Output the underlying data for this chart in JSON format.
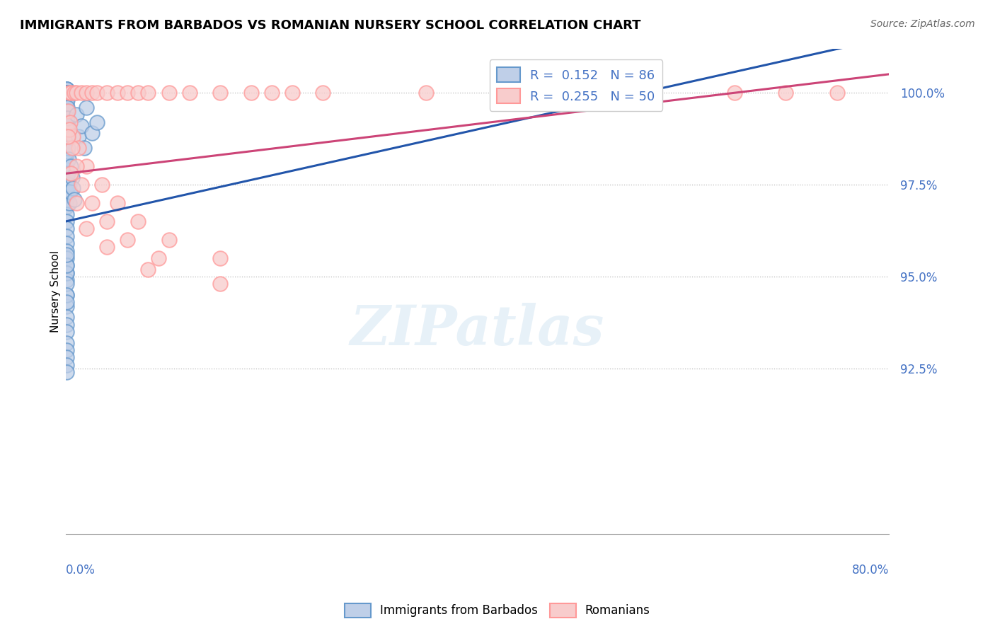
{
  "title": "IMMIGRANTS FROM BARBADOS VS ROMANIAN NURSERY SCHOOL CORRELATION CHART",
  "source": "Source: ZipAtlas.com",
  "ylabel": "Nursery School",
  "blue_R": 0.152,
  "blue_N": 86,
  "pink_R": 0.255,
  "pink_N": 50,
  "blue_color": "#6699CC",
  "pink_color": "#FF9999",
  "blue_label": "Immigrants from Barbados",
  "pink_label": "Romanians",
  "background_color": "#FFFFFF",
  "xlim": [
    0.0,
    80.0
  ],
  "ylim": [
    88.0,
    101.2
  ],
  "ytick_vals": [
    92.5,
    95.0,
    97.5,
    100.0
  ],
  "blue_scatter_x": [
    0.05,
    0.05,
    0.05,
    0.05,
    0.05,
    0.05,
    0.05,
    0.05,
    0.05,
    0.05,
    0.05,
    0.05,
    0.05,
    0.05,
    0.05,
    0.05,
    0.05,
    0.05,
    0.05,
    0.05,
    0.05,
    0.05,
    0.05,
    0.05,
    0.05,
    0.05,
    0.05,
    0.05,
    0.05,
    0.05,
    0.05,
    0.05,
    0.05,
    0.05,
    0.05,
    0.05,
    0.05,
    0.05,
    0.05,
    0.05,
    0.1,
    0.1,
    0.1,
    0.1,
    0.1,
    0.12,
    0.12,
    0.12,
    0.15,
    0.15,
    0.2,
    0.2,
    0.25,
    0.3,
    0.35,
    0.4,
    0.5,
    0.6,
    0.7,
    0.8,
    1.0,
    1.2,
    1.5,
    1.8,
    2.0,
    2.5,
    3.0,
    0.05,
    0.05,
    0.05,
    0.05,
    0.05,
    0.05,
    0.05,
    0.05,
    0.05,
    0.05,
    0.05,
    0.05,
    0.05,
    0.05,
    0.05,
    0.05
  ],
  "blue_scatter_y": [
    100.1,
    100.1,
    100.1,
    100.1,
    100.0,
    100.0,
    100.0,
    99.9,
    99.9,
    99.8,
    99.7,
    99.6,
    99.5,
    99.4,
    99.3,
    99.2,
    99.1,
    99.0,
    98.9,
    98.8,
    98.7,
    98.5,
    98.3,
    98.1,
    97.9,
    97.7,
    97.5,
    97.3,
    97.1,
    96.9,
    96.7,
    96.5,
    96.3,
    96.1,
    95.9,
    95.7,
    95.5,
    95.3,
    95.1,
    94.9,
    100.0,
    99.8,
    99.5,
    99.2,
    98.8,
    99.6,
    99.0,
    98.4,
    100.0,
    99.3,
    98.5,
    97.8,
    98.2,
    97.5,
    97.0,
    97.3,
    98.0,
    97.7,
    97.4,
    97.1,
    99.4,
    98.8,
    99.1,
    98.5,
    99.6,
    98.9,
    99.2,
    94.5,
    94.2,
    93.9,
    93.7,
    93.5,
    93.2,
    93.0,
    92.8,
    92.6,
    92.4,
    95.1,
    94.8,
    95.3,
    94.5,
    95.6,
    94.3
  ],
  "pink_scatter_x": [
    0.3,
    0.5,
    0.8,
    1.0,
    1.5,
    2.0,
    2.5,
    3.0,
    4.0,
    5.0,
    6.0,
    7.0,
    8.0,
    10.0,
    12.0,
    15.0,
    18.0,
    20.0,
    22.0,
    25.0,
    0.2,
    0.4,
    0.7,
    1.2,
    2.0,
    3.5,
    5.0,
    7.0,
    10.0,
    15.0,
    0.3,
    0.6,
    1.0,
    1.5,
    2.5,
    4.0,
    6.0,
    9.0,
    35.0,
    55.0,
    65.0,
    70.0,
    75.0,
    0.2,
    0.5,
    1.0,
    2.0,
    4.0,
    8.0,
    15.0
  ],
  "pink_scatter_y": [
    100.0,
    100.0,
    100.0,
    100.0,
    100.0,
    100.0,
    100.0,
    100.0,
    100.0,
    100.0,
    100.0,
    100.0,
    100.0,
    100.0,
    100.0,
    100.0,
    100.0,
    100.0,
    100.0,
    100.0,
    99.5,
    99.2,
    98.8,
    98.5,
    98.0,
    97.5,
    97.0,
    96.5,
    96.0,
    95.5,
    99.0,
    98.5,
    98.0,
    97.5,
    97.0,
    96.5,
    96.0,
    95.5,
    100.0,
    100.0,
    100.0,
    100.0,
    100.0,
    98.8,
    97.8,
    97.0,
    96.3,
    95.8,
    95.2,
    94.8
  ],
  "blue_trendline": [
    0.0,
    80.0,
    96.5,
    101.5
  ],
  "pink_trendline": [
    0.0,
    80.0,
    97.8,
    100.5
  ]
}
